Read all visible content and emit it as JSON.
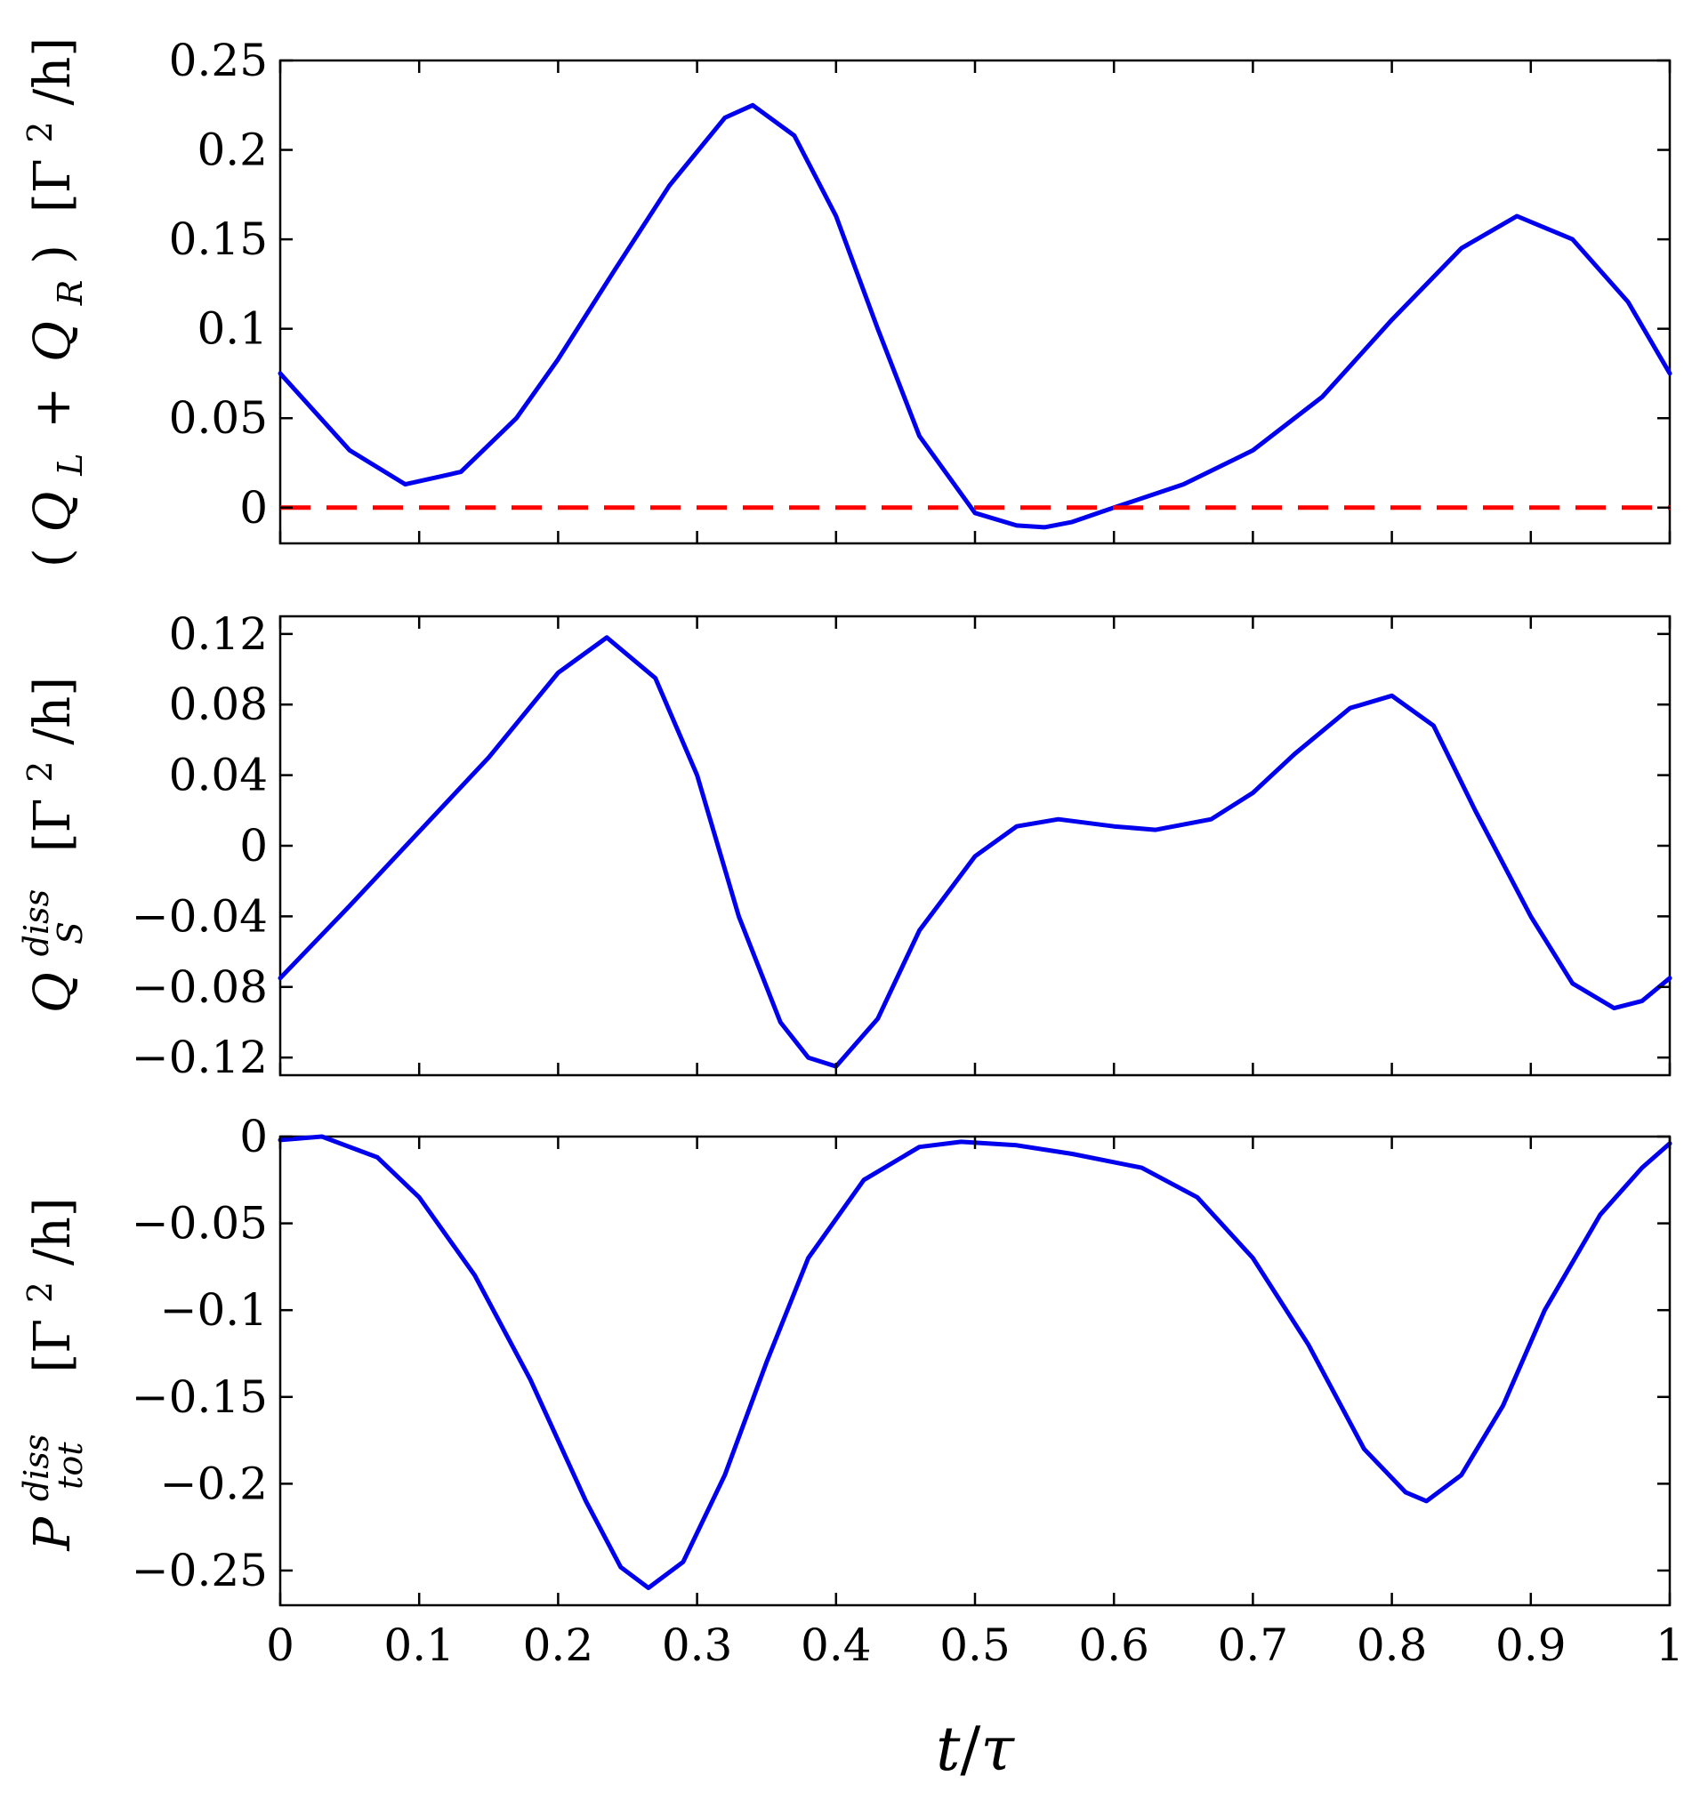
{
  "chart_data": [
    {
      "type": "line",
      "ylabel": {
        "prefix": "(",
        "q1": "Q",
        "s1": "L",
        "plus": "+",
        "q2": "Q",
        "s2": "R",
        "suffix": ")",
        "units_open": "[Γ",
        "units_exp": "2",
        "units_close": "/h]"
      },
      "xlim": [
        0,
        1
      ],
      "ylim": [
        -0.02,
        0.25
      ],
      "yticks": [
        0,
        0.05,
        0.1,
        0.15,
        0.2,
        0.25
      ],
      "ytick_labels": [
        "0",
        "0.05",
        "0.1",
        "0.15",
        "0.2",
        "0.25"
      ],
      "series": [
        {
          "color": "#0000ee",
          "style": "solid",
          "x": [
            0,
            0.05,
            0.09,
            0.13,
            0.17,
            0.2,
            0.24,
            0.28,
            0.32,
            0.34,
            0.37,
            0.4,
            0.43,
            0.46,
            0.5,
            0.53,
            0.55,
            0.57,
            0.6,
            0.65,
            0.7,
            0.75,
            0.8,
            0.85,
            0.89,
            0.93,
            0.97,
            1.0
          ],
          "y": [
            0.075,
            0.032,
            0.013,
            0.02,
            0.05,
            0.083,
            0.132,
            0.18,
            0.218,
            0.225,
            0.208,
            0.163,
            0.1,
            0.04,
            -0.003,
            -0.01,
            -0.011,
            -0.008,
            0.0,
            0.013,
            0.032,
            0.062,
            0.105,
            0.145,
            0.163,
            0.15,
            0.115,
            0.075
          ]
        },
        {
          "color": "#ff0000",
          "style": "dashed",
          "x": [
            0,
            1
          ],
          "y": [
            0,
            0
          ]
        }
      ]
    },
    {
      "type": "line",
      "ylabel": {
        "q": "Q",
        "sup": "diss",
        "sub": "S",
        "units_open": "[Γ",
        "units_exp": "2",
        "units_close": "/h]"
      },
      "xlim": [
        0,
        1
      ],
      "ylim": [
        -0.13,
        0.13
      ],
      "yticks": [
        -0.12,
        -0.08,
        -0.04,
        0,
        0.04,
        0.08,
        0.12
      ],
      "ytick_labels": [
        "−0.12",
        "−0.08",
        "−0.04",
        "0",
        "0.04",
        "0.08",
        "0.12"
      ],
      "series": [
        {
          "color": "#0000ee",
          "style": "solid",
          "x": [
            0,
            0.05,
            0.1,
            0.15,
            0.2,
            0.235,
            0.27,
            0.3,
            0.33,
            0.36,
            0.38,
            0.4,
            0.43,
            0.46,
            0.5,
            0.53,
            0.56,
            0.6,
            0.63,
            0.67,
            0.7,
            0.73,
            0.77,
            0.8,
            0.83,
            0.86,
            0.9,
            0.93,
            0.96,
            0.98,
            1.0
          ],
          "y": [
            -0.075,
            -0.034,
            0.008,
            0.05,
            0.098,
            0.118,
            0.095,
            0.04,
            -0.04,
            -0.1,
            -0.12,
            -0.125,
            -0.098,
            -0.048,
            -0.006,
            0.011,
            0.015,
            0.011,
            0.009,
            0.015,
            0.03,
            0.052,
            0.078,
            0.085,
            0.068,
            0.02,
            -0.04,
            -0.078,
            -0.092,
            -0.088,
            -0.075
          ]
        }
      ]
    },
    {
      "type": "line",
      "ylabel": {
        "p": "P",
        "sup": "diss",
        "sub": "tot",
        "units_open": "[Γ",
        "units_exp": "2",
        "units_close": "/h]"
      },
      "xlabel": {
        "t": "t",
        "slash": "/",
        "tau": "τ"
      },
      "xlim": [
        0,
        1
      ],
      "ylim": [
        -0.27,
        0.0
      ],
      "yticks": [
        -0.25,
        -0.2,
        -0.15,
        -0.1,
        -0.05,
        0
      ],
      "ytick_labels": [
        "−0.25",
        "−0.2",
        "−0.15",
        "−0.1",
        "−0.05",
        "0"
      ],
      "xticks": [
        0,
        0.1,
        0.2,
        0.3,
        0.4,
        0.5,
        0.6,
        0.7,
        0.8,
        0.9,
        1
      ],
      "xtick_labels": [
        "0",
        "0.1",
        "0.2",
        "0.3",
        "0.4",
        "0.5",
        "0.6",
        "0.7",
        "0.8",
        "0.9",
        "1"
      ],
      "series": [
        {
          "color": "#0000ee",
          "style": "solid",
          "x": [
            0,
            0.03,
            0.07,
            0.1,
            0.14,
            0.18,
            0.22,
            0.245,
            0.265,
            0.29,
            0.32,
            0.35,
            0.38,
            0.42,
            0.46,
            0.49,
            0.53,
            0.57,
            0.62,
            0.66,
            0.7,
            0.74,
            0.78,
            0.81,
            0.825,
            0.85,
            0.88,
            0.91,
            0.95,
            0.98,
            1.0
          ],
          "y": [
            -0.002,
            0.0,
            -0.012,
            -0.035,
            -0.08,
            -0.14,
            -0.21,
            -0.248,
            -0.26,
            -0.245,
            -0.195,
            -0.13,
            -0.07,
            -0.025,
            -0.006,
            -0.003,
            -0.005,
            -0.01,
            -0.018,
            -0.035,
            -0.07,
            -0.12,
            -0.18,
            -0.205,
            -0.21,
            -0.195,
            -0.155,
            -0.1,
            -0.045,
            -0.018,
            -0.004
          ]
        }
      ]
    }
  ]
}
